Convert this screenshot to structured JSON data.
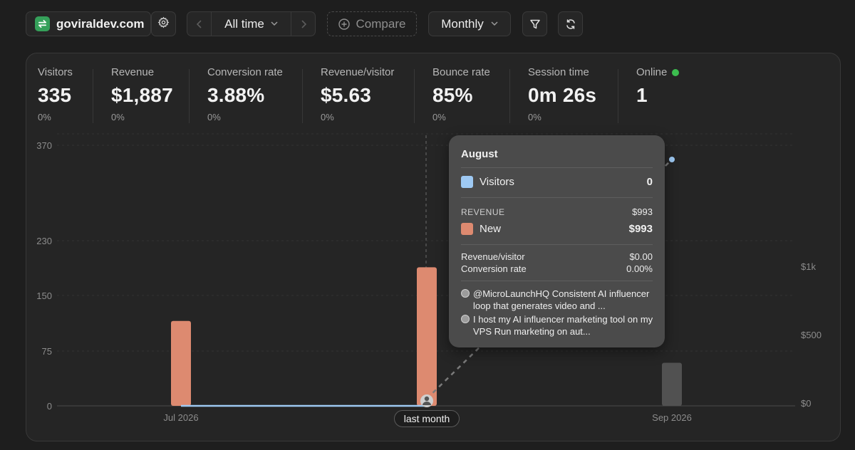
{
  "toolbar": {
    "site_name": "goviraldev.com",
    "period_label": "All time",
    "compare_label": "Compare",
    "interval_label": "Monthly"
  },
  "metrics": [
    {
      "label": "Visitors",
      "value": "335",
      "change": "0%"
    },
    {
      "label": "Revenue",
      "value": "$1,887",
      "change": "0%"
    },
    {
      "label": "Conversion rate",
      "value": "3.88%",
      "change": "0%"
    },
    {
      "label": "Revenue/visitor",
      "value": "$5.63",
      "change": "0%"
    },
    {
      "label": "Bounce rate",
      "value": "85%",
      "change": "0%"
    },
    {
      "label": "Session time",
      "value": "0m 26s",
      "change": "0%"
    }
  ],
  "online": {
    "label": "Online",
    "value": "1"
  },
  "chart_data": {
    "type": "bar",
    "categories": [
      "Jul 2026",
      "Aug 2026",
      "Sep 2026"
    ],
    "x_tick_labels": [
      "Jul 2026",
      "Sep 2026"
    ],
    "highlight_label": "last month",
    "y_left_ticks": [
      "0",
      "75",
      "150",
      "230",
      "370"
    ],
    "y_right_ticks": [
      "$0",
      "$500",
      "$1k"
    ],
    "series": [
      {
        "name": "Visitors",
        "type": "line",
        "color": "#9ec9f3",
        "values": [
          0,
          0,
          335
        ]
      },
      {
        "name": "New",
        "type": "bar",
        "color": "#dd8a70",
        "values": [
          600,
          993,
          294
        ]
      }
    ],
    "ylim_left": [
      0,
      370
    ],
    "ylim_right": [
      0,
      1000
    ]
  },
  "tooltip": {
    "month": "August",
    "visitors_label": "Visitors",
    "visitors_value": "0",
    "revenue_caption": "REVENUE",
    "revenue_total": "$993",
    "new_label": "New",
    "new_value": "$993",
    "rpv_label": "Revenue/visitor",
    "rpv_value": "$0.00",
    "conv_label": "Conversion rate",
    "conv_value": "0.00%",
    "mentions": [
      "@MicroLaunchHQ Consistent AI influencer loop that generates video and ...",
      "I host my AI influencer marketing tool on my VPS Run marketing on aut..."
    ]
  },
  "colors": {
    "visitors": "#9ec9f3",
    "revenue_new": "#dd8a70",
    "bar_future": "#515151",
    "online": "#3cbd4f",
    "site_logo": "#35a05a"
  },
  "icons": [
    "swap-arrows-icon",
    "gear-icon",
    "chevron-left-icon",
    "chevron-down-icon",
    "chevron-right-icon",
    "plus-circle-icon",
    "filter-icon",
    "refresh-icon",
    "avatar-icon"
  ]
}
